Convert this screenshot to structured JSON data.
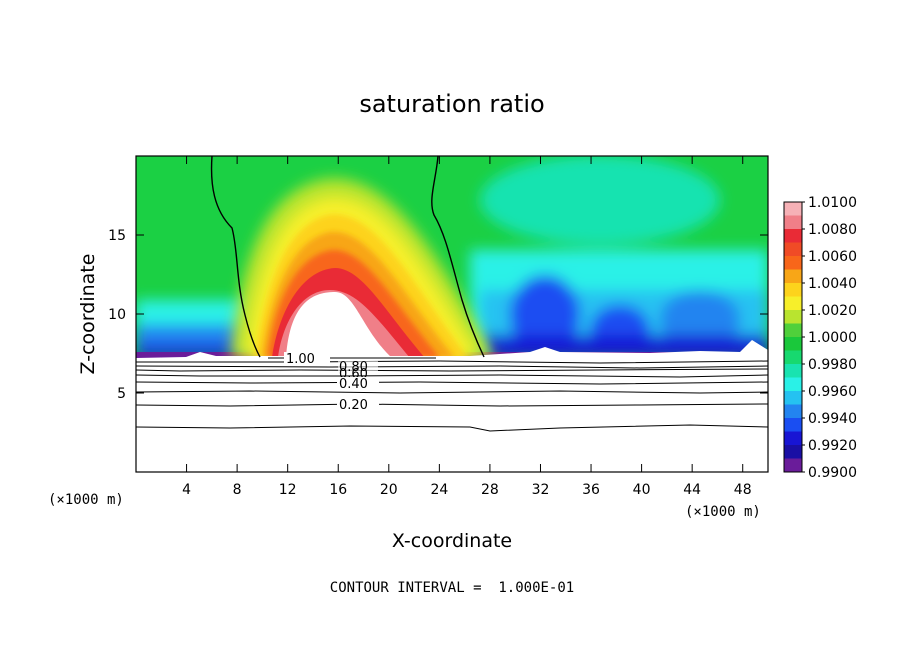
{
  "chart_data": {
    "type": "heatmap",
    "title": "saturation ratio",
    "xlabel": "X-coordinate",
    "ylabel": "Z-coordinate",
    "x_unit_label": "(×1000 m)",
    "x_unit_label_right": "(×1000 m)",
    "xlim": [
      0,
      50
    ],
    "ylim": [
      0,
      20
    ],
    "xticks": [
      4,
      8,
      12,
      16,
      20,
      24,
      28,
      32,
      36,
      40,
      44,
      48
    ],
    "yticks": [
      5,
      10,
      15
    ],
    "colorbar": {
      "labels": [
        "1.0100",
        "1.0080",
        "1.0060",
        "1.0040",
        "1.0020",
        "1.0000",
        "0.9980",
        "0.9960",
        "0.9940",
        "0.9920",
        "0.9900"
      ],
      "range": [
        0.99,
        1.01
      ],
      "levels": [
        {
          "lo": 1.009,
          "hi": 1.01,
          "color": "#f6b1b6"
        },
        {
          "lo": 1.008,
          "hi": 1.009,
          "color": "#f07f88"
        },
        {
          "lo": 1.007,
          "hi": 1.008,
          "color": "#e92b36"
        },
        {
          "lo": 1.006,
          "hi": 1.007,
          "color": "#f04b26"
        },
        {
          "lo": 1.005,
          "hi": 1.006,
          "color": "#f8661a"
        },
        {
          "lo": 1.004,
          "hi": 1.005,
          "color": "#f8a617"
        },
        {
          "lo": 1.003,
          "hi": 1.004,
          "color": "#fdd31c"
        },
        {
          "lo": 1.002,
          "hi": 1.003,
          "color": "#f7ef2a"
        },
        {
          "lo": 1.001,
          "hi": 1.002,
          "color": "#b9e42f"
        },
        {
          "lo": 1.0,
          "hi": 1.001,
          "color": "#4fd03b"
        },
        {
          "lo": 0.999,
          "hi": 1.0,
          "color": "#1ac83b"
        },
        {
          "lo": 0.998,
          "hi": 0.999,
          "color": "#17d96f"
        },
        {
          "lo": 0.997,
          "hi": 0.998,
          "color": "#19e3b0"
        },
        {
          "lo": 0.996,
          "hi": 0.997,
          "color": "#2af1e7"
        },
        {
          "lo": 0.995,
          "hi": 0.996,
          "color": "#25c2f1"
        },
        {
          "lo": 0.994,
          "hi": 0.995,
          "color": "#2384f0"
        },
        {
          "lo": 0.993,
          "hi": 0.994,
          "color": "#1a4ef2"
        },
        {
          "lo": 0.992,
          "hi": 0.993,
          "color": "#1815d4"
        },
        {
          "lo": 0.991,
          "hi": 0.992,
          "color": "#1a0fa4"
        },
        {
          "lo": 0.99,
          "hi": 0.991,
          "color": "#6a1c9a"
        }
      ]
    },
    "contour_labels": [
      "1.00",
      "0.80",
      "0.60",
      "0.40",
      "0.20"
    ],
    "note": "CONTOUR INTERVAL =  1.000E-01"
  }
}
